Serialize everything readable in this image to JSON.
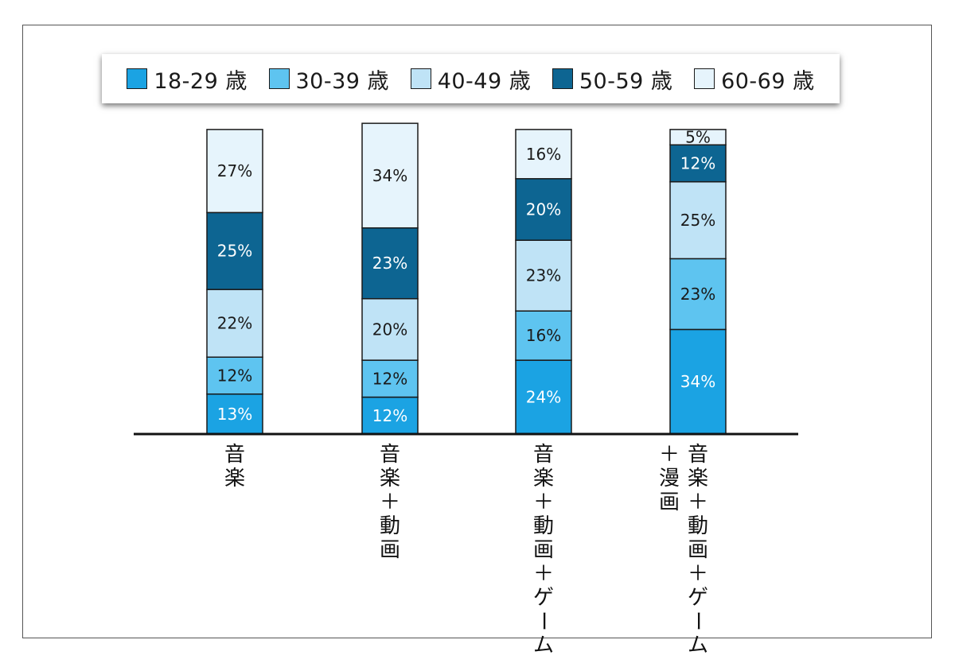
{
  "chart_data": {
    "type": "bar",
    "stacked": true,
    "orientation": "vertical",
    "unit": "%",
    "legend_position": "top",
    "grid": false,
    "categories": [
      "音楽",
      "音楽＋動画",
      "音楽＋動画＋ゲーム",
      "音楽＋動画＋ゲーム＋漫画"
    ],
    "category_lines": [
      [
        "音楽"
      ],
      [
        "音楽＋動画"
      ],
      [
        "音楽＋動画＋ゲーム"
      ],
      [
        "音楽＋動画＋ゲーム",
        "＋漫画"
      ]
    ],
    "series": [
      {
        "name": "18-29 歳",
        "values": [
          13,
          12,
          24,
          34
        ],
        "color": "#1ba3e3",
        "label_color": "#ffffff"
      },
      {
        "name": "30-39 歳",
        "values": [
          12,
          12,
          16,
          23
        ],
        "color": "#5ec4f0",
        "label_color": "#1a1a1a"
      },
      {
        "name": "40-49 歳",
        "values": [
          22,
          20,
          23,
          25
        ],
        "color": "#bfe3f6",
        "label_color": "#1a1a1a"
      },
      {
        "name": "50-59 歳",
        "values": [
          25,
          23,
          20,
          12
        ],
        "color": "#0d6592",
        "label_color": "#ffffff"
      },
      {
        "name": "60-69 歳",
        "values": [
          27,
          34,
          16,
          5
        ],
        "color": "#e6f4fc",
        "label_color": "#1a1a1a"
      }
    ],
    "ylim": [
      0,
      100
    ],
    "title": "",
    "xlabel": "",
    "ylabel": ""
  }
}
